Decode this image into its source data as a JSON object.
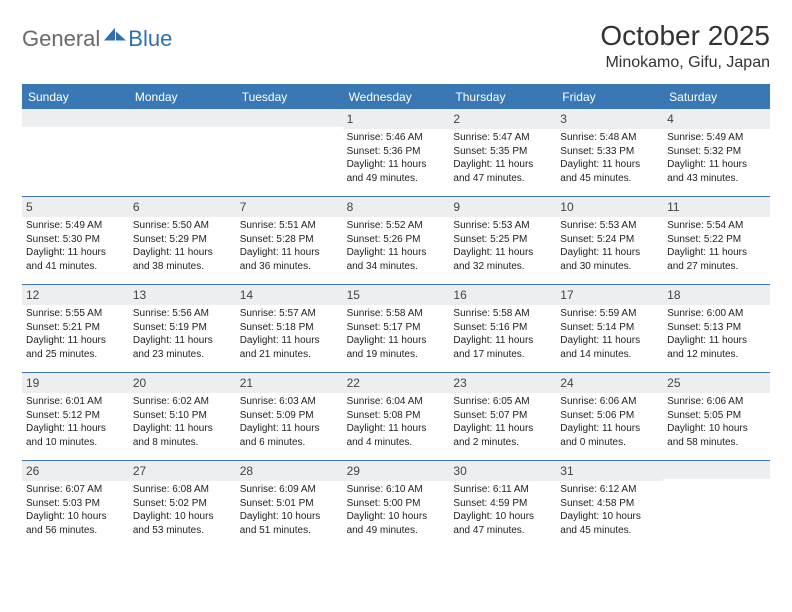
{
  "brand": {
    "part1": "General",
    "part2": "Blue"
  },
  "title": "October 2025",
  "location": "Minokamo, Gifu, Japan",
  "colors": {
    "header_bg": "#3a78b5",
    "header_text": "#ffffff",
    "date_bg": "#eceef0",
    "rule": "#3a78b5",
    "logo_gray": "#6a6a6a",
    "logo_blue": "#2f6fb0"
  },
  "weekdays": [
    "Sunday",
    "Monday",
    "Tuesday",
    "Wednesday",
    "Thursday",
    "Friday",
    "Saturday"
  ],
  "weeks": [
    [
      {
        "date": "",
        "lines": []
      },
      {
        "date": "",
        "lines": []
      },
      {
        "date": "",
        "lines": []
      },
      {
        "date": "1",
        "lines": [
          "Sunrise: 5:46 AM",
          "Sunset: 5:36 PM",
          "Daylight: 11 hours and 49 minutes."
        ]
      },
      {
        "date": "2",
        "lines": [
          "Sunrise: 5:47 AM",
          "Sunset: 5:35 PM",
          "Daylight: 11 hours and 47 minutes."
        ]
      },
      {
        "date": "3",
        "lines": [
          "Sunrise: 5:48 AM",
          "Sunset: 5:33 PM",
          "Daylight: 11 hours and 45 minutes."
        ]
      },
      {
        "date": "4",
        "lines": [
          "Sunrise: 5:49 AM",
          "Sunset: 5:32 PM",
          "Daylight: 11 hours and 43 minutes."
        ]
      }
    ],
    [
      {
        "date": "5",
        "lines": [
          "Sunrise: 5:49 AM",
          "Sunset: 5:30 PM",
          "Daylight: 11 hours and 41 minutes."
        ]
      },
      {
        "date": "6",
        "lines": [
          "Sunrise: 5:50 AM",
          "Sunset: 5:29 PM",
          "Daylight: 11 hours and 38 minutes."
        ]
      },
      {
        "date": "7",
        "lines": [
          "Sunrise: 5:51 AM",
          "Sunset: 5:28 PM",
          "Daylight: 11 hours and 36 minutes."
        ]
      },
      {
        "date": "8",
        "lines": [
          "Sunrise: 5:52 AM",
          "Sunset: 5:26 PM",
          "Daylight: 11 hours and 34 minutes."
        ]
      },
      {
        "date": "9",
        "lines": [
          "Sunrise: 5:53 AM",
          "Sunset: 5:25 PM",
          "Daylight: 11 hours and 32 minutes."
        ]
      },
      {
        "date": "10",
        "lines": [
          "Sunrise: 5:53 AM",
          "Sunset: 5:24 PM",
          "Daylight: 11 hours and 30 minutes."
        ]
      },
      {
        "date": "11",
        "lines": [
          "Sunrise: 5:54 AM",
          "Sunset: 5:22 PM",
          "Daylight: 11 hours and 27 minutes."
        ]
      }
    ],
    [
      {
        "date": "12",
        "lines": [
          "Sunrise: 5:55 AM",
          "Sunset: 5:21 PM",
          "Daylight: 11 hours and 25 minutes."
        ]
      },
      {
        "date": "13",
        "lines": [
          "Sunrise: 5:56 AM",
          "Sunset: 5:19 PM",
          "Daylight: 11 hours and 23 minutes."
        ]
      },
      {
        "date": "14",
        "lines": [
          "Sunrise: 5:57 AM",
          "Sunset: 5:18 PM",
          "Daylight: 11 hours and 21 minutes."
        ]
      },
      {
        "date": "15",
        "lines": [
          "Sunrise: 5:58 AM",
          "Sunset: 5:17 PM",
          "Daylight: 11 hours and 19 minutes."
        ]
      },
      {
        "date": "16",
        "lines": [
          "Sunrise: 5:58 AM",
          "Sunset: 5:16 PM",
          "Daylight: 11 hours and 17 minutes."
        ]
      },
      {
        "date": "17",
        "lines": [
          "Sunrise: 5:59 AM",
          "Sunset: 5:14 PM",
          "Daylight: 11 hours and 14 minutes."
        ]
      },
      {
        "date": "18",
        "lines": [
          "Sunrise: 6:00 AM",
          "Sunset: 5:13 PM",
          "Daylight: 11 hours and 12 minutes."
        ]
      }
    ],
    [
      {
        "date": "19",
        "lines": [
          "Sunrise: 6:01 AM",
          "Sunset: 5:12 PM",
          "Daylight: 11 hours and 10 minutes."
        ]
      },
      {
        "date": "20",
        "lines": [
          "Sunrise: 6:02 AM",
          "Sunset: 5:10 PM",
          "Daylight: 11 hours and 8 minutes."
        ]
      },
      {
        "date": "21",
        "lines": [
          "Sunrise: 6:03 AM",
          "Sunset: 5:09 PM",
          "Daylight: 11 hours and 6 minutes."
        ]
      },
      {
        "date": "22",
        "lines": [
          "Sunrise: 6:04 AM",
          "Sunset: 5:08 PM",
          "Daylight: 11 hours and 4 minutes."
        ]
      },
      {
        "date": "23",
        "lines": [
          "Sunrise: 6:05 AM",
          "Sunset: 5:07 PM",
          "Daylight: 11 hours and 2 minutes."
        ]
      },
      {
        "date": "24",
        "lines": [
          "Sunrise: 6:06 AM",
          "Sunset: 5:06 PM",
          "Daylight: 11 hours and 0 minutes."
        ]
      },
      {
        "date": "25",
        "lines": [
          "Sunrise: 6:06 AM",
          "Sunset: 5:05 PM",
          "Daylight: 10 hours and 58 minutes."
        ]
      }
    ],
    [
      {
        "date": "26",
        "lines": [
          "Sunrise: 6:07 AM",
          "Sunset: 5:03 PM",
          "Daylight: 10 hours and 56 minutes."
        ]
      },
      {
        "date": "27",
        "lines": [
          "Sunrise: 6:08 AM",
          "Sunset: 5:02 PM",
          "Daylight: 10 hours and 53 minutes."
        ]
      },
      {
        "date": "28",
        "lines": [
          "Sunrise: 6:09 AM",
          "Sunset: 5:01 PM",
          "Daylight: 10 hours and 51 minutes."
        ]
      },
      {
        "date": "29",
        "lines": [
          "Sunrise: 6:10 AM",
          "Sunset: 5:00 PM",
          "Daylight: 10 hours and 49 minutes."
        ]
      },
      {
        "date": "30",
        "lines": [
          "Sunrise: 6:11 AM",
          "Sunset: 4:59 PM",
          "Daylight: 10 hours and 47 minutes."
        ]
      },
      {
        "date": "31",
        "lines": [
          "Sunrise: 6:12 AM",
          "Sunset: 4:58 PM",
          "Daylight: 10 hours and 45 minutes."
        ]
      },
      {
        "date": "",
        "lines": []
      }
    ]
  ]
}
